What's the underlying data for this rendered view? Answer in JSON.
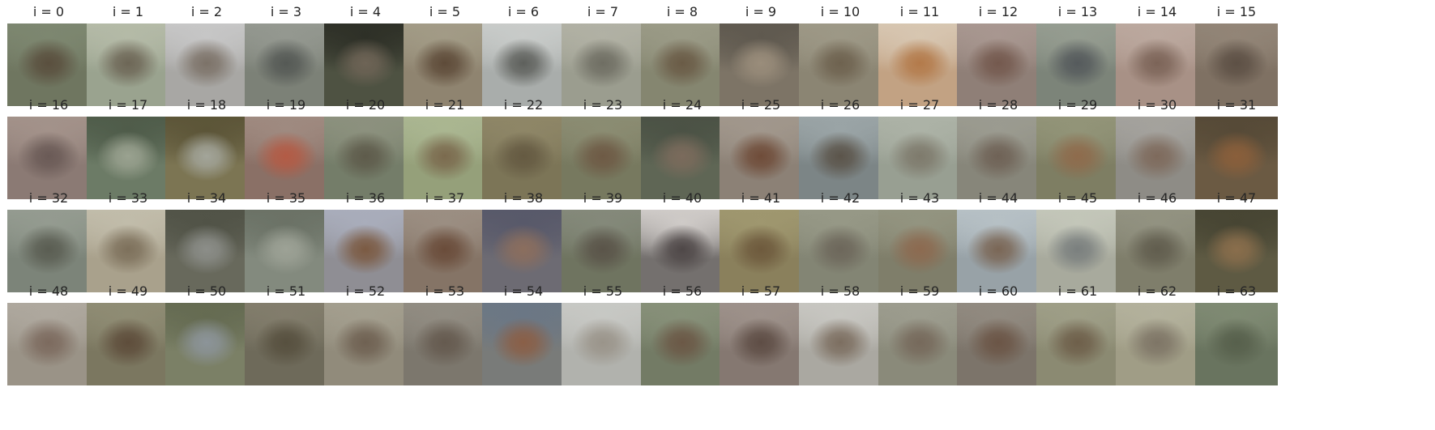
{
  "panels": [
    {
      "title": "i = 0",
      "colors": [
        "#6f7660",
        "#5a4f3e",
        "#7d8770"
      ]
    },
    {
      "title": "i = 1",
      "colors": [
        "#9aa38f",
        "#6d6656",
        "#b4baa7"
      ]
    },
    {
      "title": "i = 2",
      "colors": [
        "#a8a7a4",
        "#7c7268",
        "#c6c6c6"
      ]
    },
    {
      "title": "i = 3",
      "colors": [
        "#7c8177",
        "#555955",
        "#949890"
      ]
    },
    {
      "title": "i = 4",
      "colors": [
        "#4e5242",
        "#6e6456",
        "#2e3027"
      ]
    },
    {
      "title": "i = 5",
      "colors": [
        "#8f8470",
        "#5e4b39",
        "#a29b86"
      ]
    },
    {
      "title": "i = 6",
      "colors": [
        "#a9adab",
        "#5e605c",
        "#c8cbc9"
      ]
    },
    {
      "title": "i = 7",
      "colors": [
        "#9b9d8f",
        "#6f6e63",
        "#b1b1a4"
      ]
    },
    {
      "title": "i = 8",
      "colors": [
        "#858670",
        "#6a5b46",
        "#9a9a86"
      ]
    },
    {
      "title": "i = 9",
      "colors": [
        "#7d7466",
        "#9a8d7b",
        "#5f594f"
      ]
    },
    {
      "title": "i = 10",
      "colors": [
        "#8b8573",
        "#6e624f",
        "#9d9886"
      ]
    },
    {
      "title": "i = 11",
      "colors": [
        "#c2a283",
        "#b37a4a",
        "#d7c6b1"
      ]
    },
    {
      "title": "i = 12",
      "colors": [
        "#8f7f77",
        "#74594e",
        "#a89790"
      ]
    },
    {
      "title": "i = 13",
      "colors": [
        "#7c8479",
        "#555a5c",
        "#959c90"
      ]
    },
    {
      "title": "i = 14",
      "colors": [
        "#a89186",
        "#7c6458",
        "#bba89e"
      ]
    },
    {
      "title": "i = 15",
      "colors": [
        "#7f7163",
        "#5d5045",
        "#928577"
      ]
    },
    {
      "title": "i = 16",
      "colors": [
        "#8b7a74",
        "#6a5a56",
        "#a3928a"
      ]
    },
    {
      "title": "i = 17",
      "colors": [
        "#6c7b66",
        "#9aa290",
        "#4f5c4a"
      ]
    },
    {
      "title": "i = 18",
      "colors": [
        "#7c7553",
        "#a3a59a",
        "#5c5538"
      ]
    },
    {
      "title": "i = 19",
      "colors": [
        "#8a7066",
        "#b35b45",
        "#9f8a80"
      ]
    },
    {
      "title": "i = 20",
      "colors": [
        "#747d69",
        "#5e5b4b",
        "#8c917e"
      ]
    },
    {
      "title": "i = 21",
      "colors": [
        "#95a07a",
        "#7b6a4e",
        "#aab691"
      ]
    },
    {
      "title": "i = 22",
      "colors": [
        "#7c7557",
        "#655a42",
        "#8e8667"
      ]
    },
    {
      "title": "i = 23",
      "colors": [
        "#77795f",
        "#6e5a45",
        "#8b8c72"
      ]
    },
    {
      "title": "i = 24",
      "colors": [
        "#5f6655",
        "#7b6b5c",
        "#4b5245"
      ]
    },
    {
      "title": "i = 25",
      "colors": [
        "#8c8176",
        "#6f4c39",
        "#a1978c"
      ]
    },
    {
      "title": "i = 26",
      "colors": [
        "#7c8586",
        "#5b544a",
        "#9aa4a6"
      ]
    },
    {
      "title": "i = 27",
      "colors": [
        "#989f92",
        "#7e7a6c",
        "#acb2a6"
      ]
    },
    {
      "title": "i = 28",
      "colors": [
        "#87867a",
        "#6f6256",
        "#9b9b90"
      ]
    },
    {
      "title": "i = 29",
      "colors": [
        "#7e7e63",
        "#8e6b4c",
        "#929478"
      ]
    },
    {
      "title": "i = 30",
      "colors": [
        "#8e8c86",
        "#7e6a5c",
        "#a4a29d"
      ]
    },
    {
      "title": "i = 31",
      "colors": [
        "#6b5a43",
        "#8a5f3b",
        "#564a37"
      ]
    },
    {
      "title": "i = 32",
      "colors": [
        "#7c8479",
        "#5a5d52",
        "#949b90"
      ]
    },
    {
      "title": "i = 33",
      "colors": [
        "#a9a18c",
        "#7d705b",
        "#c1bcaa"
      ]
    },
    {
      "title": "i = 34",
      "colors": [
        "#68695c",
        "#8c8e89",
        "#515347"
      ]
    },
    {
      "title": "i = 35",
      "colors": [
        "#838a7e",
        "#9da296",
        "#6b7266"
      ]
    },
    {
      "title": "i = 36",
      "colors": [
        "#8f8e94",
        "#7b5a42",
        "#a9adbb"
      ]
    },
    {
      "title": "i = 37",
      "colors": [
        "#857466",
        "#6a4c3a",
        "#9b8e82"
      ]
    },
    {
      "title": "i = 38",
      "colors": [
        "#6d6b73",
        "#8b6e5e",
        "#58596a"
      ]
    },
    {
      "title": "i = 39",
      "colors": [
        "#6f7460",
        "#5a5449",
        "#84897a"
      ]
    },
    {
      "title": "i = 40",
      "colors": [
        "#74706e",
        "#4e4747",
        "#cfcbc8"
      ]
    },
    {
      "title": "i = 41",
      "colors": [
        "#8a805c",
        "#6e5a3d",
        "#9f976f"
      ]
    },
    {
      "title": "i = 42",
      "colors": [
        "#838574",
        "#6d675b",
        "#969886"
      ]
    },
    {
      "title": "i = 43",
      "colors": [
        "#7f7e6a",
        "#8c6a50",
        "#939480"
      ]
    },
    {
      "title": "i = 44",
      "colors": [
        "#98a2a7",
        "#7a6655",
        "#b6c0c5"
      ]
    },
    {
      "title": "i = 45",
      "colors": [
        "#a8aa9d",
        "#7a7f7e",
        "#c3c6b9"
      ]
    },
    {
      "title": "i = 46",
      "colors": [
        "#7f7e6b",
        "#615d4e",
        "#929281"
      ]
    },
    {
      "title": "i = 47",
      "colors": [
        "#5e5a43",
        "#8a6e4c",
        "#474533"
      ]
    },
    {
      "title": "i = 48",
      "colors": [
        "#9a9387",
        "#7c6a5e",
        "#aea89e"
      ]
    },
    {
      "title": "i = 49",
      "colors": [
        "#7b7760",
        "#5e4d3b",
        "#8f8c74"
      ]
    },
    {
      "title": "i = 50",
      "colors": [
        "#7b8066",
        "#8c9499",
        "#656b52"
      ]
    },
    {
      "title": "i = 51",
      "colors": [
        "#6e6a5a",
        "#57503f",
        "#827d6c"
      ]
    },
    {
      "title": "i = 52",
      "colors": [
        "#918b7b",
        "#6f6152",
        "#a39e8e"
      ]
    },
    {
      "title": "i = 53",
      "colors": [
        "#7c776d",
        "#655a4f",
        "#918c82"
      ]
    },
    {
      "title": "i = 54",
      "colors": [
        "#797b79",
        "#8a5f47",
        "#6b7785"
      ]
    },
    {
      "title": "i = 55",
      "colors": [
        "#b1b2ad",
        "#9a948a",
        "#c7c8c4"
      ]
    },
    {
      "title": "i = 56",
      "colors": [
        "#737b65",
        "#6b5846",
        "#879079"
      ]
    },
    {
      "title": "i = 57",
      "colors": [
        "#857871",
        "#5e4d45",
        "#9d918a"
      ]
    },
    {
      "title": "i = 58",
      "colors": [
        "#aaa8a1",
        "#7c6e60",
        "#c7c6c1"
      ]
    },
    {
      "title": "i = 59",
      "colors": [
        "#8a8a7a",
        "#76695b",
        "#9c9c8e"
      ]
    },
    {
      "title": "i = 60",
      "colors": [
        "#7c746a",
        "#6b5546",
        "#918a80"
      ]
    },
    {
      "title": "i = 61",
      "colors": [
        "#8b8a72",
        "#6e5f4a",
        "#9e9e87"
      ]
    },
    {
      "title": "i = 62",
      "colors": [
        "#a09d86",
        "#7e7566",
        "#b3b19c"
      ]
    },
    {
      "title": "i = 63",
      "colors": [
        "#69745f",
        "#57604c",
        "#7f8a73"
      ]
    }
  ]
}
